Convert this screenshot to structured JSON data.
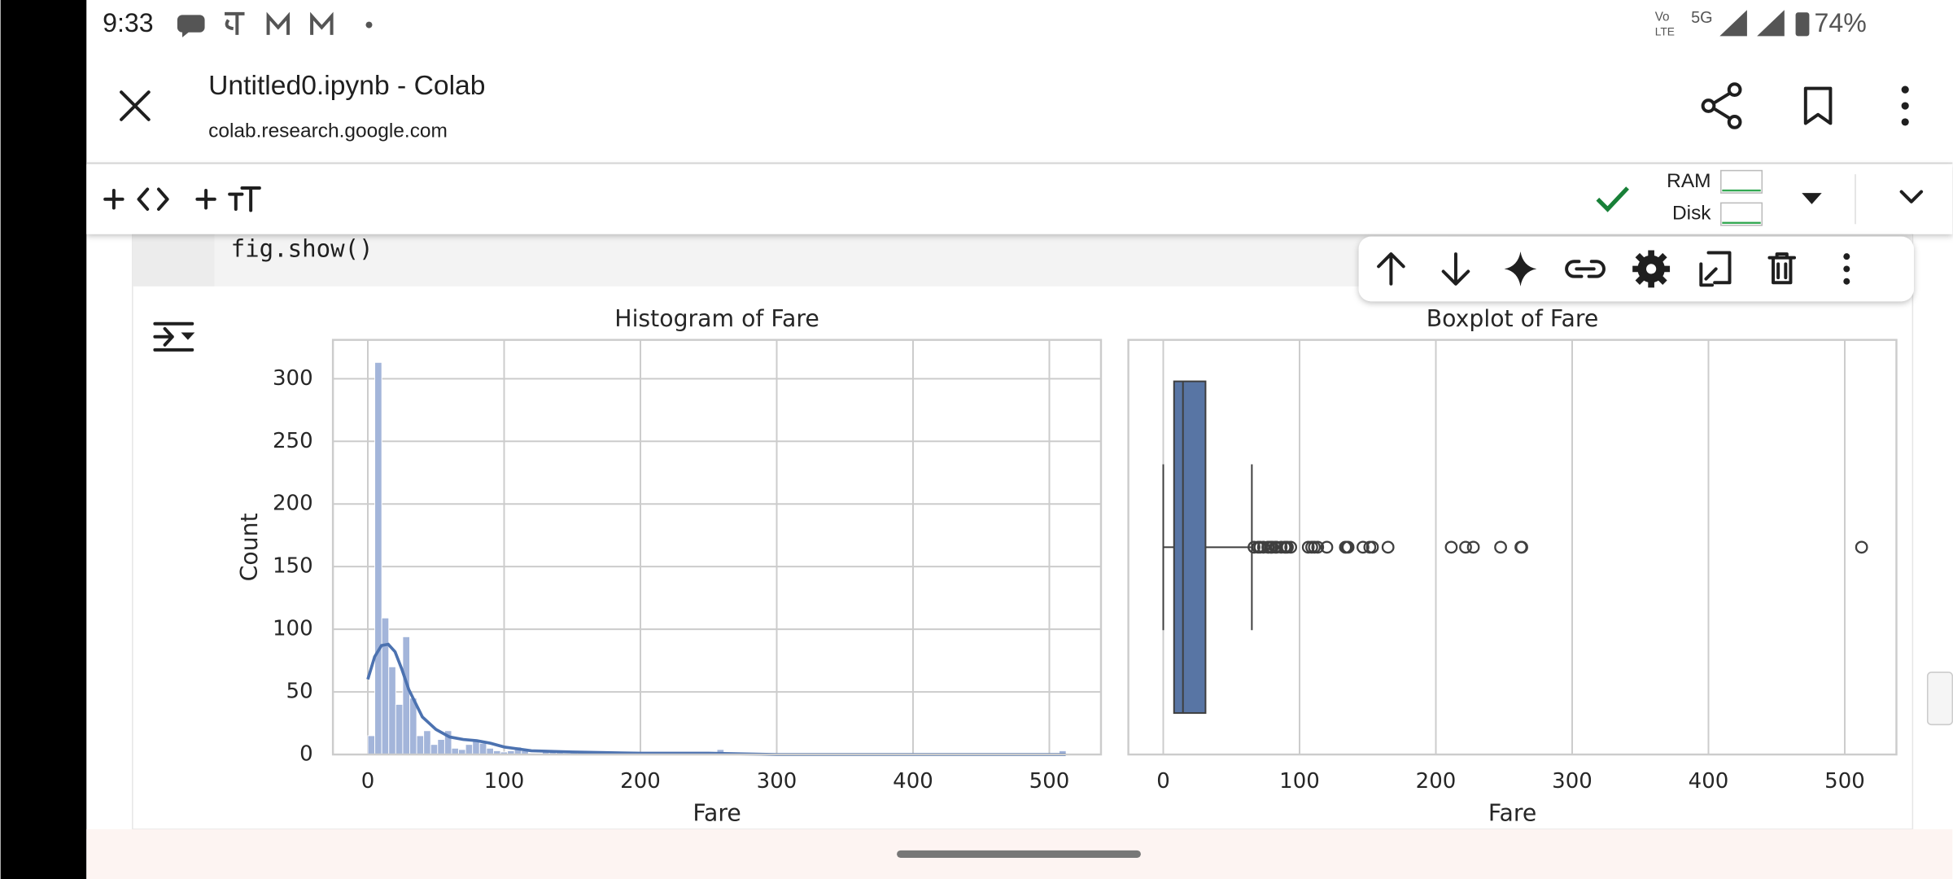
{
  "status_bar": {
    "time": "9:33",
    "volte": "Vo",
    "network": "5G",
    "battery": "74%"
  },
  "header": {
    "title": "Untitled0.ipynb - Colab",
    "url": "colab.research.google.com"
  },
  "toolbar": {
    "ram": "RAM",
    "disk": "Disk"
  },
  "cell": {
    "code": "fig.show()"
  },
  "chart_data": [
    {
      "type": "histogram",
      "title": "Histogram of Fare",
      "x_label": "Fare",
      "y_label": "Count",
      "color": "#a3b5da",
      "grid": true,
      "xlim": [
        -25.6,
        537.9
      ],
      "xticks": [
        0,
        100,
        200,
        300,
        400,
        500
      ],
      "ylim": [
        0,
        331
      ],
      "yticks": [
        0,
        50,
        100,
        150,
        200,
        250,
        300
      ],
      "bins": [
        0,
        5.12,
        10.25,
        15.37,
        20.49,
        25.62,
        30.74,
        35.86,
        40.99,
        46.11,
        51.23,
        56.36,
        61.48,
        66.6,
        71.73,
        76.85,
        81.97,
        87.1,
        92.22,
        97.34,
        102.47,
        107.59,
        112.71,
        117.84,
        122.96,
        128.08,
        133.21,
        138.33,
        143.45,
        148.58,
        153.7,
        158.82,
        163.95,
        169.07,
        174.19,
        179.32,
        184.44,
        189.56,
        194.69,
        199.81,
        204.93,
        210.06,
        215.18,
        220.3,
        225.42,
        230.55,
        235.67,
        240.79,
        245.92,
        251.04,
        256.16,
        261.29,
        266.41,
        271.53,
        276.66,
        281.78,
        286.9,
        292.03,
        297.15,
        302.27,
        307.4,
        312.52,
        317.64,
        322.77,
        327.89,
        333.01,
        338.14,
        343.26,
        348.38,
        353.51,
        358.63,
        363.75,
        368.88,
        374,
        379.12,
        384.25,
        389.37,
        394.49,
        399.62,
        404.74,
        409.86,
        414.99,
        420.11,
        425.23,
        430.36,
        435.48,
        440.6,
        445.73,
        450.85,
        455.97,
        461.1,
        466.22,
        471.34,
        476.47,
        481.59,
        486.71,
        491.84,
        496.96,
        502.08,
        507.21,
        512.33
      ],
      "counts": [
        15,
        313,
        109,
        70,
        40,
        94,
        45,
        15,
        19,
        8,
        12,
        19,
        5,
        4,
        8,
        12,
        9,
        5,
        3,
        2,
        3,
        6,
        3,
        1,
        0,
        2,
        3,
        2,
        1,
        2,
        2,
        1,
        1,
        0,
        0,
        0,
        0,
        0,
        0,
        0,
        0,
        2,
        1,
        2,
        2,
        0,
        0,
        0,
        0,
        0,
        4,
        0,
        0,
        0,
        0,
        0,
        0,
        0,
        0,
        0,
        0,
        0,
        0,
        0,
        0,
        0,
        0,
        0,
        0,
        0,
        0,
        0,
        0,
        0,
        0,
        0,
        0,
        0,
        0,
        0,
        0,
        0,
        0,
        0,
        0,
        0,
        0,
        0,
        0,
        0,
        0,
        0,
        0,
        0,
        0,
        0,
        0,
        0,
        0,
        3
      ],
      "kde": {
        "color": "#4c72b0",
        "x": [
          0,
          5,
          10,
          15,
          20,
          25,
          30,
          40,
          50,
          60,
          70,
          80,
          90,
          100,
          120,
          150,
          200,
          250,
          300,
          400,
          512
        ],
        "y": [
          60,
          78,
          87,
          88,
          82,
          68,
          52,
          30,
          20,
          14,
          12,
          11,
          9,
          6,
          3,
          2,
          1,
          1,
          0,
          0,
          0
        ]
      }
    },
    {
      "type": "box",
      "title": "Boxplot of Fare",
      "x_label": "Fare",
      "color": "#5875a4",
      "grid": true,
      "xlim": [
        -25.6,
        537.9
      ],
      "xticks": [
        0,
        100,
        200,
        300,
        400,
        500
      ],
      "whislo": 0,
      "q1": 7.91,
      "median": 14.45,
      "q3": 31,
      "whishi": 65,
      "fliers": [
        66.6,
        69.55,
        71,
        73.5,
        76.7,
        77.3,
        78.85,
        79.2,
        80,
        82.2,
        83.15,
        86.5,
        89.1,
        90,
        91.08,
        93.5,
        106.4,
        108.9,
        110.9,
        113.3,
        120,
        133.65,
        134.5,
        135.6,
        146.5,
        151.55,
        153.46,
        164.9,
        211.3,
        221.8,
        227.5,
        247.5,
        262.4,
        263,
        512.33
      ]
    }
  ]
}
